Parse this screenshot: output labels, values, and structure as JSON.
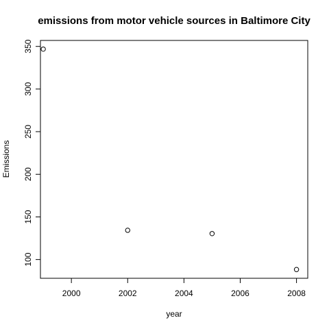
{
  "chart_data": {
    "type": "scatter",
    "title": "emissions from motor vehicle sources in Baltimore City",
    "xlabel": "year",
    "ylabel": "Emissions",
    "x": [
      1999,
      2002,
      2005,
      2008
    ],
    "y": [
      346.82,
      134.31,
      130.43,
      88.28
    ],
    "xlim": [
      1998.9,
      2008.4
    ],
    "ylim": [
      78.0,
      357.0
    ],
    "x_ticks": [
      2000,
      2002,
      2004,
      2006,
      2008
    ],
    "y_ticks": [
      100,
      150,
      200,
      250,
      300,
      350
    ],
    "x_tick_labels": [
      "2000",
      "2002",
      "2004",
      "2006",
      "2008"
    ],
    "y_tick_labels": [
      "100",
      "150",
      "200",
      "250",
      "300",
      "350"
    ],
    "grid": false,
    "legend": "none",
    "marker": "open-circle",
    "colors": {
      "point": "#000000",
      "axis": "#000000",
      "background": "#ffffff"
    }
  }
}
